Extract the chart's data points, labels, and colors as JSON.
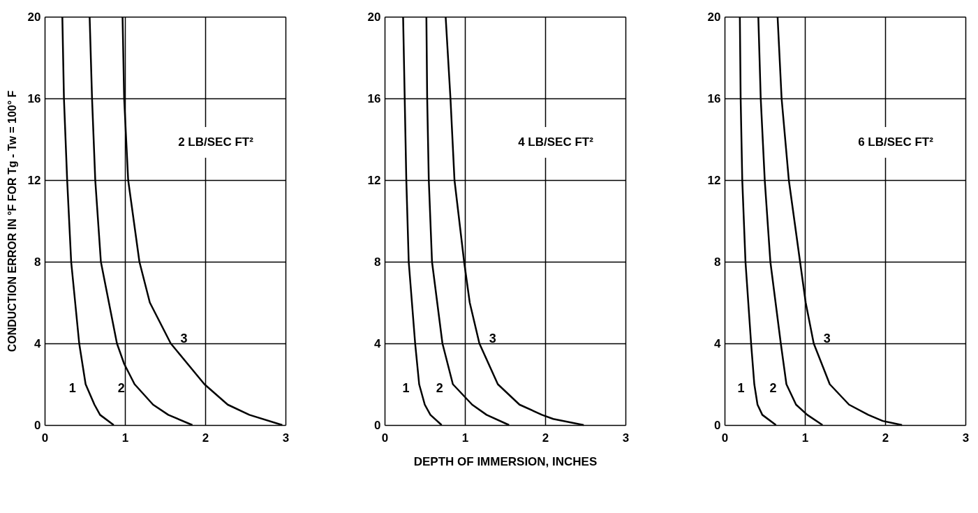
{
  "chart_data": [
    {
      "type": "line",
      "ylabel": "CONDUCTION ERROR IN °F FOR Tg - Tw = 100° F",
      "annotations": [
        "2 LB/SEC FT²"
      ],
      "xlim": [
        0,
        3
      ],
      "ylim": [
        0,
        20
      ],
      "xticks": [
        0,
        1,
        2,
        3
      ],
      "yticks": [
        0,
        4,
        8,
        12,
        16,
        20
      ],
      "grid": true,
      "line_style": "solid",
      "marker": "none",
      "series": [
        {
          "name": "1",
          "color": "#000000",
          "x": [
            0.22,
            0.24,
            0.28,
            0.33,
            0.43,
            0.51,
            0.62,
            0.69,
            0.86
          ],
          "values": [
            20,
            16,
            12,
            8,
            4,
            2,
            1,
            0.5,
            0
          ]
        },
        {
          "name": "2",
          "color": "#000000",
          "x": [
            0.56,
            0.59,
            0.63,
            0.7,
            0.9,
            0.99,
            1.12,
            1.35,
            1.54,
            1.84
          ],
          "values": [
            20,
            16,
            12,
            8,
            4,
            3,
            2,
            1,
            0.5,
            0
          ]
        },
        {
          "name": "3",
          "color": "#000000",
          "x": [
            0.97,
            0.99,
            1.04,
            1.18,
            1.31,
            1.57,
            1.99,
            2.28,
            2.55,
            2.96
          ],
          "values": [
            20,
            16,
            12,
            8,
            6,
            4,
            2,
            1,
            0.5,
            0
          ]
        }
      ]
    },
    {
      "type": "line",
      "xlabel": "DEPTH OF IMMERSION, INCHES",
      "annotations": [
        "4 LB/SEC FT²"
      ],
      "xlim": [
        0,
        3
      ],
      "ylim": [
        0,
        20
      ],
      "xticks": [
        0,
        1,
        2,
        3
      ],
      "yticks": [
        0,
        4,
        8,
        12,
        16,
        20
      ],
      "grid": true,
      "line_style": "solid",
      "marker": "none",
      "series": [
        {
          "name": "1",
          "color": "#000000",
          "x": [
            0.23,
            0.25,
            0.27,
            0.3,
            0.38,
            0.43,
            0.5,
            0.57,
            0.71
          ],
          "values": [
            20,
            16,
            12,
            8,
            4,
            2,
            1,
            0.5,
            0
          ]
        },
        {
          "name": "2",
          "color": "#000000",
          "x": [
            0.52,
            0.53,
            0.55,
            0.59,
            0.72,
            0.85,
            1.09,
            1.27,
            1.55
          ],
          "values": [
            20,
            16,
            12,
            8,
            4,
            2,
            1,
            0.5,
            0
          ]
        },
        {
          "name": "3",
          "color": "#000000",
          "x": [
            0.76,
            0.82,
            0.87,
            0.99,
            1.06,
            1.18,
            1.41,
            1.68,
            1.96,
            2.1,
            2.48
          ],
          "values": [
            20,
            16,
            12,
            8,
            6,
            4,
            2,
            1,
            0.5,
            0.3,
            0
          ]
        }
      ]
    },
    {
      "type": "line",
      "annotations": [
        "6 LB/SEC FT²"
      ],
      "xlim": [
        0,
        3
      ],
      "ylim": [
        0,
        20
      ],
      "xticks": [
        0,
        1,
        2,
        3
      ],
      "yticks": [
        0,
        4,
        8,
        12,
        16,
        20
      ],
      "grid": true,
      "line_style": "solid",
      "marker": "none",
      "series": [
        {
          "name": "1",
          "color": "#000000",
          "x": [
            0.19,
            0.2,
            0.22,
            0.26,
            0.33,
            0.37,
            0.41,
            0.47,
            0.64
          ],
          "values": [
            20,
            16,
            12,
            8,
            4,
            2,
            1,
            0.5,
            0
          ]
        },
        {
          "name": "2",
          "color": "#000000",
          "x": [
            0.42,
            0.45,
            0.5,
            0.57,
            0.7,
            0.77,
            0.89,
            1.03,
            1.22
          ],
          "values": [
            20,
            16,
            12,
            8,
            4,
            2,
            1,
            0.5,
            0
          ]
        },
        {
          "name": "3",
          "color": "#000000",
          "x": [
            0.66,
            0.71,
            0.8,
            0.94,
            1.01,
            1.11,
            1.31,
            1.55,
            1.79,
            1.97,
            2.21
          ],
          "values": [
            20,
            16,
            12,
            8,
            6,
            4,
            2,
            1,
            0.5,
            0.2,
            0
          ]
        }
      ]
    }
  ]
}
